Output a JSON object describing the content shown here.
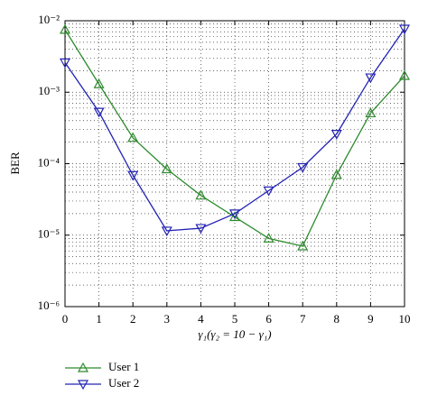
{
  "chart_data": {
    "type": "line",
    "x_label": "γ₁(γ₂ = 10 − γ₁)",
    "y_label": "BER",
    "x": [
      0,
      1,
      2,
      3,
      4,
      5,
      6,
      7,
      8,
      9,
      10
    ],
    "series": [
      {
        "name": "User 1",
        "color": "#2e8b2e",
        "marker": "triangle-up",
        "values": [
          0.0075,
          0.0013,
          0.00023,
          8.4e-05,
          3.6e-05,
          1.8e-05,
          9e-06,
          7e-06,
          7e-05,
          0.00051,
          0.0017
        ]
      },
      {
        "name": "User 2",
        "color": "#2323b4",
        "marker": "triangle-down",
        "values": [
          0.0026,
          0.00053,
          6.9e-05,
          1.15e-05,
          1.25e-05,
          2e-05,
          4.2e-05,
          8.9e-05,
          0.00026,
          0.0016,
          0.0077
        ]
      }
    ],
    "xlim": [
      0,
      10
    ],
    "xticks": [
      0,
      1,
      2,
      3,
      4,
      5,
      6,
      7,
      8,
      9,
      10
    ],
    "ylim": [
      1e-06,
      0.01
    ],
    "yticks": [
      {
        "value": 1e-06,
        "label": "10⁻⁶"
      },
      {
        "value": 1e-05,
        "label": "10⁻⁵"
      },
      {
        "value": 0.0001,
        "label": "10⁻⁴"
      },
      {
        "value": 0.001,
        "label": "10⁻³"
      },
      {
        "value": 0.01,
        "label": "10⁻²"
      }
    ],
    "y_scale": "log",
    "grid": true,
    "legend_position": "below-left"
  }
}
